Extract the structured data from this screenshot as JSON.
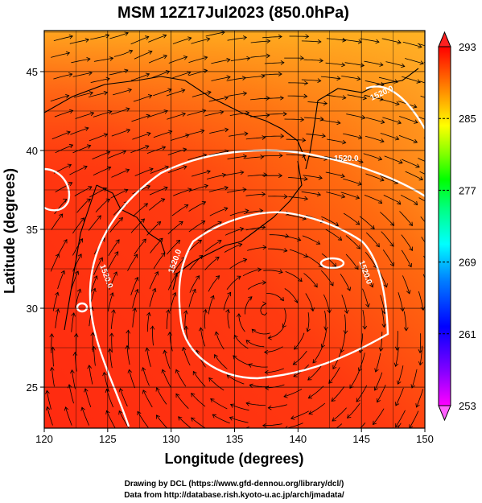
{
  "title": "MSM 12Z17Jul2023 (850.0hPa)",
  "x_axis": {
    "label": "Longitude (degrees)",
    "ticks": [
      "120",
      "125",
      "130",
      "135",
      "140",
      "145",
      "150"
    ]
  },
  "y_axis": {
    "label": "Latitude  (degrees)",
    "ticks": [
      "25",
      "30",
      "35",
      "40",
      "45"
    ]
  },
  "colorbar": {
    "ticks": [
      "293",
      "285",
      "277",
      "269",
      "261",
      "253"
    ],
    "colors": [
      "#ff00ff",
      "#8000ff",
      "#0000ff",
      "#0080ff",
      "#00ffff",
      "#00ff80",
      "#00ff00",
      "#80ff00",
      "#ffff00",
      "#ffa000",
      "#ff5000",
      "#ff0000"
    ]
  },
  "contours": {
    "labels": [
      "1520.0",
      "1520.0",
      "1520.0",
      "1520.0",
      "1520.0"
    ]
  },
  "credits": {
    "line1": "Drawing by DCL (https://www.gfd-dennou.org/library/dcl/)",
    "line2": "Data from http://database.rish.kyoto-u.ac.jp/arch/jmadata/"
  },
  "chart_data": {
    "type": "heatmap",
    "title": "MSM 12Z17Jul2023 (850.0hPa)",
    "xlabel": "Longitude (degrees)",
    "ylabel": "Latitude  (degrees)",
    "xlim": [
      120,
      150
    ],
    "ylim": [
      22.4,
      47.6
    ],
    "color_range": [
      253,
      293
    ],
    "colorbar_ticks": [
      293,
      285,
      277,
      269,
      261,
      253
    ],
    "contour_level": 1520.0,
    "grid": true,
    "overlays": [
      "streamlines",
      "coastlines",
      "geopotential height contour 1520.0"
    ]
  }
}
